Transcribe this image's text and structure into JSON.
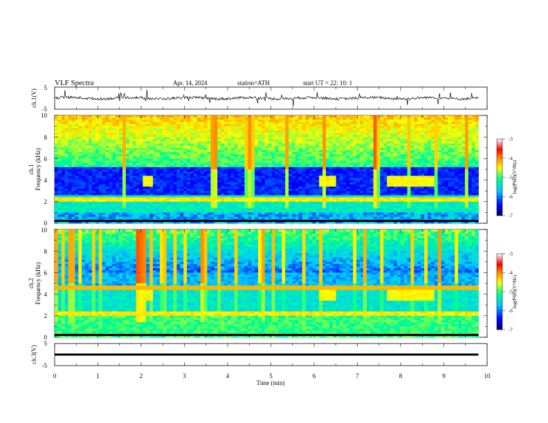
{
  "header": {
    "title": "VLF Spectra",
    "date": "Apr. 14, 2024",
    "station": "station=ATH",
    "start_ut": "start UT =  22: 10: 1"
  },
  "panels": {
    "ch1v": {
      "ylabel": "ch.1(V)",
      "ticks": [
        "5",
        "-5"
      ]
    },
    "ch1": {
      "ylabel": "ch.1\nFrequency (kHz)",
      "ylabel_line1": "ch.1",
      "ylabel_line2": "Frequency (kHz)",
      "ticks": [
        "10",
        "8",
        "6",
        "4",
        "2",
        "0"
      ]
    },
    "ch2": {
      "ylabel_line1": "ch.2",
      "ylabel_line2": "Frequency (kHz)",
      "ticks": [
        "10",
        "8",
        "6",
        "4",
        "2",
        "0"
      ]
    },
    "ch3v": {
      "ylabel": "ch.3(V)",
      "ticks": [
        "5",
        "-5"
      ]
    }
  },
  "colorbar": {
    "label": "log(PSD)(V²/Hz)",
    "ticks": [
      "-3",
      "-4",
      "-5",
      "-6",
      "-7"
    ],
    "colors": [
      "#000080",
      "#0000ff",
      "#00c0ff",
      "#00ff80",
      "#ffff00",
      "#ff8000",
      "#ff0000",
      "#ffffff"
    ]
  },
  "chart_data": {
    "type": "heatmap",
    "title": "VLF Spectra",
    "xlabel": "Time (min)",
    "x_ticks": [
      "0",
      "1",
      "2",
      "3",
      "4",
      "5",
      "6",
      "7",
      "8",
      "9",
      "10"
    ],
    "xlim": [
      0,
      10
    ],
    "data_end_min": 9.8,
    "series": [
      {
        "name": "ch.1(V)",
        "kind": "waveform",
        "ylim": [
          -5,
          5
        ],
        "mean_level": 0
      },
      {
        "name": "ch.1",
        "kind": "spectrogram",
        "ylim_khz": [
          0,
          10
        ],
        "zlim_log_psd": [
          -7,
          -3
        ],
        "bursts_min": [
          [
            2.0,
            2.3
          ],
          [
            6.1,
            6.5
          ],
          [
            7.65,
            8.8
          ]
        ],
        "burst_freq_khz": 4
      },
      {
        "name": "ch.2",
        "kind": "spectrogram",
        "ylim_khz": [
          0,
          10
        ],
        "zlim_log_psd": [
          -7,
          -3
        ],
        "bursts_min": [
          [
            2.0,
            2.3
          ],
          [
            6.1,
            6.5
          ],
          [
            7.65,
            8.8
          ]
        ],
        "burst_freq_khz": 4
      },
      {
        "name": "ch.3(V)",
        "kind": "waveform",
        "ylim": [
          -5,
          5
        ],
        "mean_level": 0
      }
    ]
  }
}
